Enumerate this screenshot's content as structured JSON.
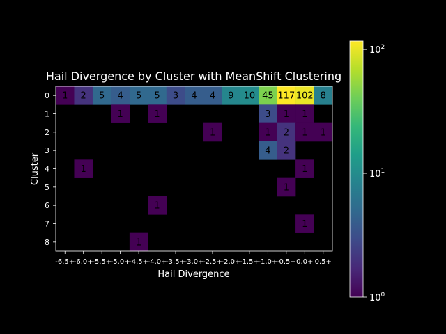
{
  "chart_data": {
    "type": "heatmap",
    "title": "Hail Divergence by Cluster with MeanShift Clustering",
    "xlabel": "Hail Divergence",
    "ylabel": "Cluster",
    "x_categories": [
      "-6.5+",
      "-6.0+",
      "-5.5+",
      "-5.0+",
      "-4.5+",
      "-4.0+",
      "-3.5+",
      "-3.0+",
      "-2.5+",
      "-2.0+",
      "-1.5+",
      "-1.0+",
      "-0.5+",
      "0.0+",
      "0.5+"
    ],
    "y_categories": [
      "0",
      "1",
      "2",
      "3",
      "4",
      "5",
      "6",
      "7",
      "8"
    ],
    "values": [
      [
        1,
        2,
        5,
        4,
        5,
        5,
        3,
        4,
        4,
        9,
        10,
        45,
        117,
        102,
        8
      ],
      [
        null,
        null,
        null,
        1,
        null,
        1,
        null,
        null,
        null,
        null,
        null,
        3,
        1,
        1,
        null
      ],
      [
        null,
        null,
        null,
        null,
        null,
        null,
        null,
        null,
        1,
        null,
        null,
        1,
        2,
        1,
        1
      ],
      [
        null,
        null,
        null,
        null,
        null,
        null,
        null,
        null,
        null,
        null,
        null,
        4,
        2,
        null,
        null
      ],
      [
        null,
        1,
        null,
        null,
        null,
        null,
        null,
        null,
        null,
        null,
        null,
        null,
        null,
        1,
        null
      ],
      [
        null,
        null,
        null,
        null,
        null,
        null,
        null,
        null,
        null,
        null,
        null,
        null,
        1,
        null,
        null
      ],
      [
        null,
        null,
        null,
        null,
        null,
        1,
        null,
        null,
        null,
        null,
        null,
        null,
        null,
        null,
        null
      ],
      [
        null,
        null,
        null,
        null,
        null,
        null,
        null,
        null,
        null,
        null,
        null,
        null,
        null,
        1,
        null
      ],
      [
        null,
        null,
        null,
        null,
        1,
        null,
        null,
        null,
        null,
        null,
        null,
        null,
        null,
        null,
        null
      ]
    ],
    "color_scale": "log",
    "colormap": "viridis",
    "colorbar": {
      "vmin": 1,
      "vmax": 117,
      "ticks": [
        1,
        10,
        100
      ],
      "tick_labels": [
        "10^0",
        "10^1",
        "10^2"
      ]
    },
    "grid": false
  },
  "colors": {
    "background": "#000000",
    "text": "#ffffff"
  }
}
